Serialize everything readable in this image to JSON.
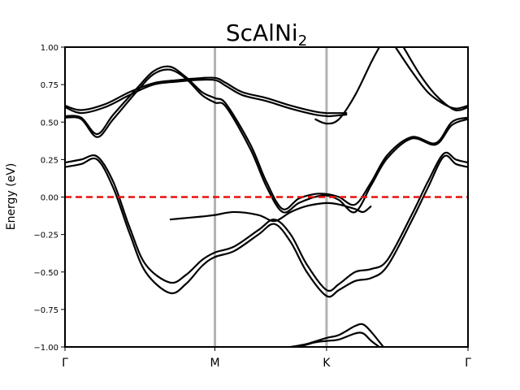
{
  "chart_data": {
    "type": "line",
    "title": {
      "main": "ScAlNi",
      "subscript": "2"
    },
    "ylabel": "Energy (eV)",
    "ylim": [
      -1.0,
      1.0
    ],
    "yticks": [
      -1.0,
      -0.75,
      -0.5,
      -0.25,
      0.0,
      0.25,
      0.5,
      0.75,
      1.0
    ],
    "ytick_labels": [
      "−1.00",
      "−0.75",
      "−0.50",
      "−0.25",
      "0.00",
      "0.25",
      "0.50",
      "0.75",
      "1.00"
    ],
    "xticks": [
      {
        "label": "Γ",
        "k": 0.0
      },
      {
        "label": "M",
        "k": 0.372
      },
      {
        "label": "K",
        "k": 0.649
      },
      {
        "label": "Γ",
        "k": 1.0
      }
    ],
    "xlim": [
      0.0,
      1.0
    ],
    "fermi_level": 0.0,
    "series": [
      {
        "values": [
          [
            0,
            0.61
          ],
          [
            0.04,
            0.58
          ],
          [
            0.1,
            0.62
          ],
          [
            0.16,
            0.7
          ],
          [
            0.22,
            0.76
          ],
          [
            0.28,
            0.78
          ],
          [
            0.32,
            0.79
          ],
          [
            0.372,
            0.795
          ],
          [
            0.4,
            0.76
          ],
          [
            0.44,
            0.7
          ],
          [
            0.5,
            0.66
          ],
          [
            0.56,
            0.61
          ],
          [
            0.62,
            0.57
          ],
          [
            0.649,
            0.56
          ],
          [
            0.66,
            0.56
          ],
          [
            0.7,
            0.56
          ]
        ]
      },
      {
        "values": [
          [
            0,
            0.6
          ],
          [
            0.04,
            0.56
          ],
          [
            0.1,
            0.6
          ],
          [
            0.16,
            0.68
          ],
          [
            0.22,
            0.75
          ],
          [
            0.28,
            0.77
          ],
          [
            0.32,
            0.78
          ],
          [
            0.372,
            0.78
          ],
          [
            0.4,
            0.74
          ],
          [
            0.44,
            0.68
          ],
          [
            0.5,
            0.64
          ],
          [
            0.56,
            0.59
          ],
          [
            0.62,
            0.55
          ],
          [
            0.649,
            0.54
          ],
          [
            0.66,
            0.54
          ],
          [
            0.7,
            0.55
          ]
        ]
      },
      {
        "values": [
          [
            0,
            0.54
          ],
          [
            0.04,
            0.53
          ],
          [
            0.08,
            0.42
          ],
          [
            0.12,
            0.55
          ],
          [
            0.18,
            0.73
          ],
          [
            0.22,
            0.84
          ],
          [
            0.26,
            0.87
          ],
          [
            0.3,
            0.8
          ],
          [
            0.34,
            0.7
          ],
          [
            0.372,
            0.66
          ],
          [
            0.4,
            0.62
          ],
          [
            0.46,
            0.35
          ],
          [
            0.5,
            0.1
          ],
          [
            0.54,
            -0.08
          ],
          [
            0.58,
            -0.01
          ],
          [
            0.62,
            0.02
          ],
          [
            0.649,
            0.02
          ],
          [
            0.68,
            0.0
          ],
          [
            0.72,
            -0.05
          ],
          [
            0.76,
            0.1
          ],
          [
            0.8,
            0.28
          ],
          [
            0.86,
            0.4
          ],
          [
            0.92,
            0.36
          ],
          [
            0.96,
            0.5
          ],
          [
            1.0,
            0.53
          ]
        ]
      },
      {
        "values": [
          [
            0,
            0.53
          ],
          [
            0.04,
            0.52
          ],
          [
            0.08,
            0.4
          ],
          [
            0.12,
            0.52
          ],
          [
            0.18,
            0.71
          ],
          [
            0.22,
            0.82
          ],
          [
            0.26,
            0.85
          ],
          [
            0.3,
            0.79
          ],
          [
            0.34,
            0.68
          ],
          [
            0.372,
            0.63
          ],
          [
            0.4,
            0.6
          ],
          [
            0.46,
            0.32
          ],
          [
            0.5,
            0.07
          ],
          [
            0.54,
            -0.1
          ],
          [
            0.58,
            -0.04
          ],
          [
            0.62,
            0.0
          ],
          [
            0.649,
            0.01
          ],
          [
            0.68,
            -0.02
          ],
          [
            0.72,
            -0.1
          ],
          [
            0.76,
            0.08
          ],
          [
            0.8,
            0.26
          ],
          [
            0.86,
            0.39
          ],
          [
            0.92,
            0.35
          ],
          [
            0.96,
            0.48
          ],
          [
            1.0,
            0.52
          ]
        ]
      },
      {
        "values": [
          [
            0.62,
            0.52
          ],
          [
            0.649,
            0.49
          ],
          [
            0.68,
            0.52
          ],
          [
            0.72,
            0.68
          ],
          [
            0.76,
            0.9
          ],
          [
            0.78,
            1.0
          ]
        ]
      },
      {
        "values": [
          [
            0.82,
            1.0
          ],
          [
            0.86,
            0.84
          ],
          [
            0.9,
            0.7
          ],
          [
            0.94,
            0.62
          ],
          [
            0.97,
            0.59
          ],
          [
            1.0,
            0.61
          ]
        ]
      },
      {
        "values": [
          [
            0.84,
            1.0
          ],
          [
            0.88,
            0.82
          ],
          [
            0.92,
            0.68
          ],
          [
            0.96,
            0.59
          ],
          [
            0.98,
            0.58
          ],
          [
            1.0,
            0.6
          ]
        ]
      },
      {
        "values": [
          [
            0,
            0.23
          ],
          [
            0.04,
            0.25
          ],
          [
            0.08,
            0.27
          ],
          [
            0.12,
            0.1
          ],
          [
            0.16,
            -0.2
          ],
          [
            0.2,
            -0.45
          ],
          [
            0.26,
            -0.57
          ],
          [
            0.3,
            -0.52
          ],
          [
            0.34,
            -0.42
          ],
          [
            0.372,
            -0.37
          ],
          [
            0.42,
            -0.33
          ],
          [
            0.48,
            -0.22
          ],
          [
            0.52,
            -0.15
          ],
          [
            0.56,
            -0.25
          ],
          [
            0.6,
            -0.45
          ],
          [
            0.649,
            -0.62
          ],
          [
            0.68,
            -0.58
          ],
          [
            0.72,
            -0.5
          ],
          [
            0.76,
            -0.48
          ],
          [
            0.8,
            -0.42
          ],
          [
            0.86,
            -0.12
          ],
          [
            0.9,
            0.1
          ],
          [
            0.94,
            0.29
          ],
          [
            0.97,
            0.25
          ],
          [
            1.0,
            0.23
          ]
        ]
      },
      {
        "values": [
          [
            0,
            0.2
          ],
          [
            0.04,
            0.22
          ],
          [
            0.08,
            0.25
          ],
          [
            0.12,
            0.06
          ],
          [
            0.16,
            -0.24
          ],
          [
            0.2,
            -0.5
          ],
          [
            0.26,
            -0.64
          ],
          [
            0.3,
            -0.58
          ],
          [
            0.34,
            -0.46
          ],
          [
            0.372,
            -0.4
          ],
          [
            0.42,
            -0.36
          ],
          [
            0.48,
            -0.25
          ],
          [
            0.52,
            -0.18
          ],
          [
            0.56,
            -0.3
          ],
          [
            0.6,
            -0.5
          ],
          [
            0.649,
            -0.66
          ],
          [
            0.68,
            -0.62
          ],
          [
            0.72,
            -0.56
          ],
          [
            0.76,
            -0.54
          ],
          [
            0.8,
            -0.46
          ],
          [
            0.86,
            -0.16
          ],
          [
            0.9,
            0.06
          ],
          [
            0.94,
            0.27
          ],
          [
            0.97,
            0.22
          ],
          [
            1.0,
            0.2
          ]
        ]
      },
      {
        "values": [
          [
            0.26,
            -0.15
          ],
          [
            0.3,
            -0.14
          ],
          [
            0.34,
            -0.13
          ],
          [
            0.372,
            -0.12
          ],
          [
            0.42,
            -0.1
          ],
          [
            0.48,
            -0.12
          ],
          [
            0.52,
            -0.16
          ],
          [
            0.56,
            -0.1
          ],
          [
            0.6,
            -0.06
          ],
          [
            0.649,
            -0.04
          ],
          [
            0.68,
            -0.05
          ],
          [
            0.72,
            -0.08
          ],
          [
            0.74,
            -0.1
          ],
          [
            0.76,
            -0.06
          ]
        ]
      },
      {
        "values": [
          [
            0.56,
            -1.0
          ],
          [
            0.6,
            -0.98
          ],
          [
            0.649,
            -0.94
          ],
          [
            0.68,
            -0.92
          ],
          [
            0.72,
            -0.86
          ],
          [
            0.74,
            -0.85
          ],
          [
            0.76,
            -0.9
          ],
          [
            0.79,
            -1.0
          ]
        ]
      },
      {
        "values": [
          [
            0.58,
            -1.0
          ],
          [
            0.62,
            -0.97
          ],
          [
            0.649,
            -0.96
          ],
          [
            0.68,
            -0.95
          ],
          [
            0.72,
            -0.91
          ],
          [
            0.74,
            -0.91
          ],
          [
            0.76,
            -0.96
          ],
          [
            0.78,
            -1.0
          ]
        ]
      }
    ]
  }
}
